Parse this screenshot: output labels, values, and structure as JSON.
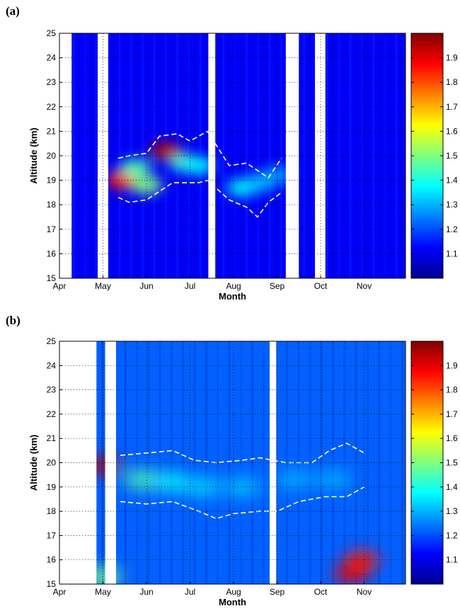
{
  "figure": {
    "panel_labels": [
      "(a)",
      "(b)"
    ]
  },
  "chart_data": [
    {
      "type": "heatmap",
      "panel": "(a)",
      "xlabel": "Month",
      "ylabel": "Altitude (km)",
      "x_ticks": [
        "Apr",
        "May",
        "Jun",
        "Jul",
        "Aug",
        "Sep",
        "Oct",
        "Nov"
      ],
      "y_ticks": [
        15,
        16,
        17,
        18,
        19,
        20,
        21,
        22,
        23,
        24,
        25
      ],
      "ylim": [
        15,
        25
      ],
      "colorbar_ticks": [
        1.1,
        1.2,
        1.3,
        1.4,
        1.5,
        1.6,
        1.7,
        1.8,
        1.9
      ],
      "colorbar_range": [
        1.0,
        2.0
      ],
      "grid": true,
      "data_gaps_month_fraction": [
        [
          0.0,
          0.28
        ],
        [
          0.88,
          1.12
        ],
        [
          3.42,
          3.58
        ],
        [
          5.2,
          5.5
        ],
        [
          5.87,
          6.11
        ]
      ],
      "background_level": 1.12,
      "features": [
        {
          "month": 1.42,
          "altitude": 19.0,
          "value": 1.85
        },
        {
          "month": 2.45,
          "altitude": 20.2,
          "value": 1.95
        },
        {
          "month": 1.75,
          "altitude": 19.5,
          "value": 1.45
        },
        {
          "month": 2.0,
          "altitude": 18.8,
          "value": 1.5
        },
        {
          "month": 2.9,
          "altitude": 19.7,
          "value": 1.42
        },
        {
          "month": 3.2,
          "altitude": 19.6,
          "value": 1.38
        },
        {
          "month": 4.2,
          "altitude": 18.7,
          "value": 1.38
        },
        {
          "month": 4.6,
          "altitude": 18.9,
          "value": 1.32
        },
        {
          "month": 5.0,
          "altitude": 19.2,
          "value": 1.28
        }
      ],
      "contour_level": 1.3,
      "contour_lower_km": [
        [
          1.35,
          18.3
        ],
        [
          1.6,
          18.1
        ],
        [
          2.0,
          18.2
        ],
        [
          2.6,
          18.9
        ],
        [
          3.2,
          18.9
        ],
        [
          3.4,
          19.0
        ],
        [
          3.9,
          18.2
        ],
        [
          4.3,
          17.9
        ],
        [
          4.55,
          17.5
        ],
        [
          4.8,
          18.1
        ],
        [
          5.1,
          18.5
        ]
      ],
      "contour_upper_km": [
        [
          1.35,
          19.9
        ],
        [
          1.6,
          20.0
        ],
        [
          2.0,
          20.1
        ],
        [
          2.3,
          20.8
        ],
        [
          2.7,
          20.9
        ],
        [
          3.0,
          20.6
        ],
        [
          3.4,
          21.0
        ],
        [
          3.9,
          19.6
        ],
        [
          4.3,
          19.7
        ],
        [
          4.8,
          19.1
        ],
        [
          5.1,
          19.9
        ]
      ]
    },
    {
      "type": "heatmap",
      "panel": "(b)",
      "xlabel": "Month",
      "ylabel": "Altitude (km)",
      "x_ticks": [
        "Apr",
        "May",
        "Jun",
        "Jul",
        "Aug",
        "Sep",
        "Oct",
        "Nov"
      ],
      "y_ticks": [
        15,
        16,
        17,
        18,
        19,
        20,
        21,
        22,
        23,
        24,
        25
      ],
      "ylim": [
        15,
        25
      ],
      "colorbar_ticks": [
        1.1,
        1.2,
        1.3,
        1.4,
        1.5,
        1.6,
        1.7,
        1.8,
        1.9
      ],
      "colorbar_range": [
        1.0,
        2.0
      ],
      "grid": true,
      "data_gaps_month_fraction": [
        [
          0.0,
          0.85
        ],
        [
          1.05,
          1.3
        ],
        [
          4.83,
          4.98
        ]
      ],
      "background_level": 1.22,
      "features": [
        {
          "month": 1.0,
          "altitude": 19.9,
          "value": 1.95
        },
        {
          "month": 1.0,
          "altitude": 15.3,
          "value": 1.5
        },
        {
          "month": 1.9,
          "altitude": 19.3,
          "value": 1.45
        },
        {
          "month": 2.6,
          "altitude": 19.2,
          "value": 1.38
        },
        {
          "month": 3.3,
          "altitude": 19.0,
          "value": 1.34
        },
        {
          "month": 4.2,
          "altitude": 19.0,
          "value": 1.32
        },
        {
          "month": 5.4,
          "altitude": 19.3,
          "value": 1.3
        },
        {
          "month": 6.3,
          "altitude": 19.3,
          "value": 1.3
        },
        {
          "month": 6.7,
          "altitude": 15.4,
          "value": 1.9
        },
        {
          "month": 6.95,
          "altitude": 16.0,
          "value": 1.85
        }
      ],
      "contour_level": 1.3,
      "contour_lower_km": [
        [
          1.4,
          18.4
        ],
        [
          2.0,
          18.3
        ],
        [
          2.6,
          18.4
        ],
        [
          3.2,
          18.0
        ],
        [
          3.6,
          17.7
        ],
        [
          4.0,
          17.9
        ],
        [
          4.6,
          18.0
        ],
        [
          5.0,
          18.0
        ],
        [
          5.5,
          18.4
        ],
        [
          6.1,
          18.6
        ],
        [
          6.6,
          18.6
        ],
        [
          7.0,
          19.0
        ]
      ],
      "contour_upper_km": [
        [
          1.4,
          20.3
        ],
        [
          2.0,
          20.4
        ],
        [
          2.6,
          20.5
        ],
        [
          3.1,
          20.1
        ],
        [
          3.6,
          20.0
        ],
        [
          4.2,
          20.1
        ],
        [
          4.6,
          20.2
        ],
        [
          5.2,
          20.0
        ],
        [
          5.8,
          20.0
        ],
        [
          6.2,
          20.5
        ],
        [
          6.6,
          20.8
        ],
        [
          7.0,
          20.4
        ]
      ]
    }
  ]
}
